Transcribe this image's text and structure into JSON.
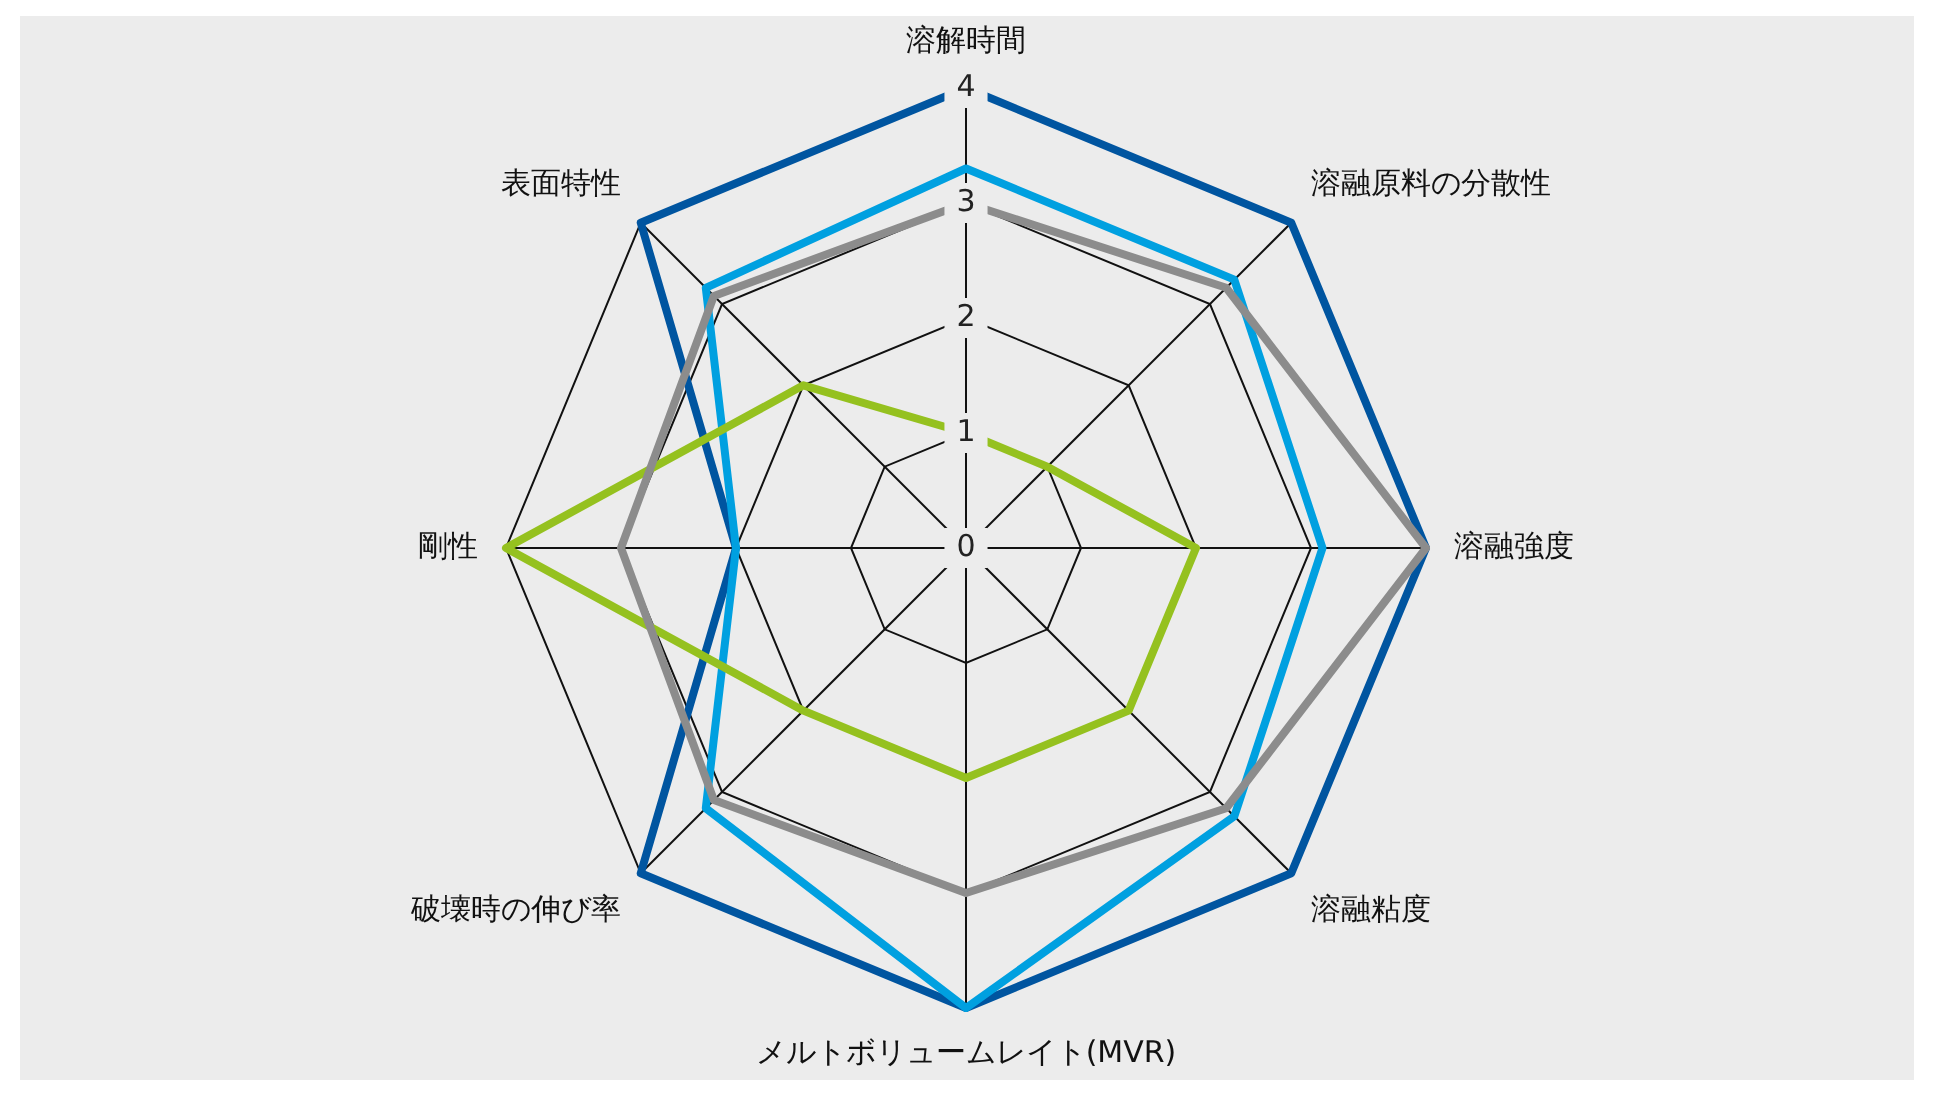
{
  "chart_data": {
    "type": "radar",
    "categories": [
      "溶解時間",
      "溶融原料の分散性",
      "溶融強度",
      "溶融粘度",
      "メルトボリュームレイト(MVR)",
      "破壊時の伸び率",
      "剛性",
      "表面特性"
    ],
    "ylim": [
      0,
      4
    ],
    "yticks": [
      0,
      1,
      2,
      3,
      4
    ],
    "grid": true,
    "legend": false,
    "marker": "none",
    "series": [
      {
        "color": "#8c8c8c",
        "values": [
          3,
          3.2,
          4,
          3.2,
          3,
          3.1,
          3,
          3.1
        ]
      },
      {
        "color": "#95c11f",
        "values": [
          1,
          1,
          2,
          2,
          2,
          2,
          4,
          2
        ]
      },
      {
        "color": "#00a0e0",
        "values": [
          3.3,
          3.3,
          3.1,
          3.3,
          4,
          3.2,
          2,
          3.2
        ]
      },
      {
        "color": "#0055a0",
        "values": [
          4,
          4,
          4,
          4,
          4,
          4,
          2,
          4
        ]
      }
    ]
  }
}
